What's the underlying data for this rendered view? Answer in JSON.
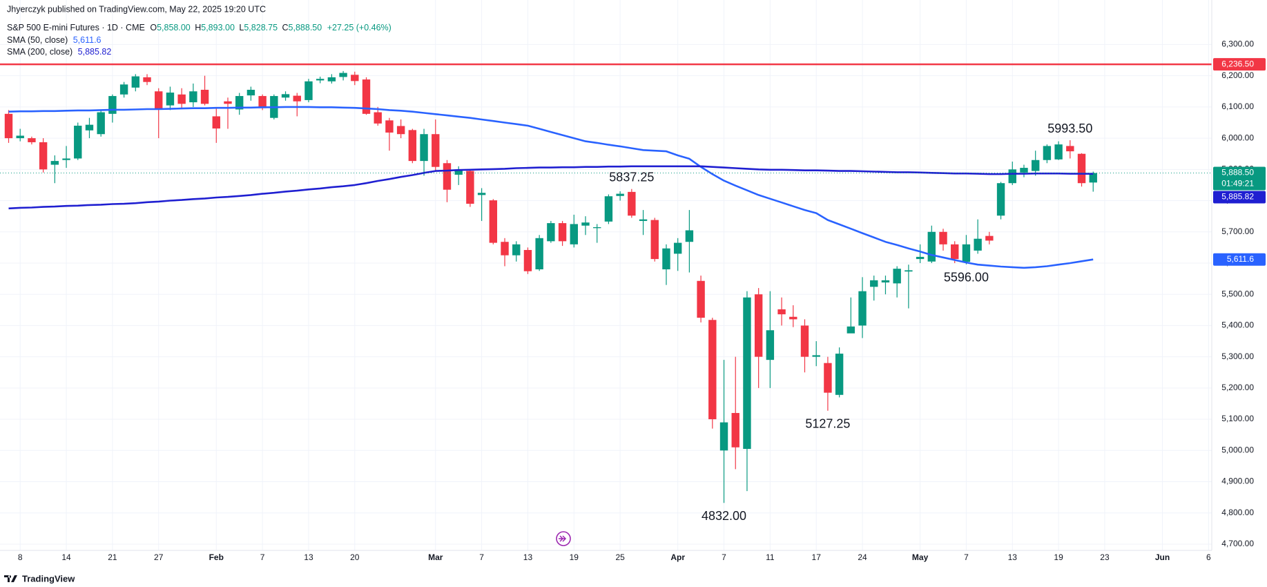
{
  "chart_data": {
    "type": "candlestick",
    "header": {
      "author": "Jhyerczyk published on TradingView.com, May 22, 2025 19:20 UTC",
      "symbol": "S&P 500 E-mini Futures · 1D · CME",
      "ohlc": [
        {
          "key": "O",
          "text": "5,858.00"
        },
        {
          "key": "H",
          "text": "5,893.00"
        },
        {
          "key": "L",
          "text": "5,828.75"
        },
        {
          "key": "C",
          "text": "5,888.50"
        }
      ],
      "change": "+27.25 (+0.46%)"
    },
    "categories": [
      null,
      "8",
      null,
      null,
      null,
      "14",
      null,
      null,
      null,
      "21",
      null,
      null,
      null,
      "27",
      null,
      null,
      null,
      null,
      "Feb",
      null,
      null,
      null,
      "7",
      null,
      null,
      null,
      "13",
      null,
      null,
      null,
      "20",
      null,
      null,
      null,
      null,
      null,
      null,
      "Mar",
      null,
      null,
      null,
      "7",
      null,
      null,
      null,
      "13",
      null,
      null,
      null,
      "19",
      null,
      null,
      null,
      "25",
      null,
      null,
      null,
      null,
      "Apr",
      null,
      null,
      null,
      "7",
      null,
      null,
      null,
      "11",
      null,
      null,
      null,
      "17",
      null,
      null,
      null,
      "24",
      null,
      null,
      null,
      null,
      "May",
      null,
      null,
      null,
      "7",
      null,
      null,
      null,
      "13",
      null,
      null,
      null,
      "19",
      null,
      null,
      null,
      "23",
      null,
      null,
      null,
      null,
      "Jun",
      null,
      null,
      null,
      "6"
    ],
    "month_labels": [
      "Feb",
      "Mar",
      "Apr",
      "May",
      "Jun"
    ],
    "open": [
      6078,
      6000,
      6000,
      5987,
      5915,
      5930,
      5935,
      6025,
      6013,
      6078,
      6140,
      6162,
      6195,
      6150,
      6105,
      6140,
      6115,
      6155,
      6070,
      6118,
      6092,
      6137,
      6135,
      6065,
      6130,
      6136,
      6122,
      6185,
      6182,
      6196,
      6203,
      6188,
      6083,
      6057,
      6039,
      6026,
      5927,
      6013,
      5920,
      5883,
      5895,
      5818,
      5801,
      5668,
      5625,
      5642,
      5580,
      5670,
      5728,
      5660,
      5720,
      5712,
      5733,
      5815,
      5828,
      5735,
      5738,
      5580,
      5630,
      5668,
      5543,
      5418,
      5000,
      5120,
      5005,
      5500,
      5290,
      5452,
      5428,
      5400,
      5300,
      5280,
      5178,
      5375,
      5400,
      5524,
      5538,
      5535,
      5573,
      5613,
      5605,
      5700,
      5660,
      5604,
      5640,
      5687,
      5752,
      5856,
      5890,
      5895,
      5930,
      5932,
      5975,
      5950,
      5858,
      null,
      null,
      null,
      null,
      null,
      null,
      null,
      null,
      null,
      null
    ],
    "high": [
      6090,
      6030,
      6005,
      6000,
      5945,
      5975,
      6050,
      6065,
      6090,
      6140,
      6180,
      6205,
      6205,
      6160,
      6165,
      6160,
      6175,
      6200,
      6095,
      6130,
      6145,
      6165,
      6140,
      6140,
      6150,
      6145,
      6190,
      6197,
      6205,
      6215,
      6213,
      6195,
      6100,
      6065,
      6060,
      6030,
      6030,
      6060,
      5930,
      5910,
      5900,
      5840,
      5805,
      5680,
      5670,
      5650,
      5690,
      5735,
      5735,
      5755,
      5750,
      5725,
      5820,
      5830,
      5837.25,
      5770,
      5745,
      5660,
      5680,
      5770,
      5560,
      5425,
      5290,
      5300,
      5510,
      5520,
      5510,
      5490,
      5465,
      5420,
      5350,
      5300,
      5330,
      5490,
      5555,
      5560,
      5560,
      5590,
      5595,
      5660,
      5720,
      5710,
      5670,
      5690,
      5740,
      5700,
      5860,
      5925,
      5915,
      5960,
      5980,
      5990,
      5993.5,
      5952,
      5893,
      null,
      null,
      null,
      null,
      null,
      null,
      null,
      null,
      null,
      null
    ],
    "low": [
      5985,
      5990,
      5980,
      5890,
      5856,
      5905,
      5930,
      6000,
      6005,
      6050,
      6130,
      6150,
      6170,
      6000,
      6090,
      6095,
      6100,
      6105,
      5985,
      6030,
      6075,
      6120,
      6090,
      6060,
      6120,
      6070,
      6115,
      6176,
      6175,
      6185,
      6170,
      6075,
      6040,
      5960,
      6000,
      5920,
      5880,
      5895,
      5795,
      5850,
      5780,
      5735,
      5660,
      5590,
      5605,
      5565,
      5575,
      5665,
      5655,
      5650,
      5690,
      5665,
      5725,
      5800,
      5745,
      5690,
      5605,
      5530,
      5575,
      5570,
      5410,
      5070,
      4832,
      4940,
      4870,
      5200,
      5200,
      5400,
      5395,
      5250,
      5270,
      5127.25,
      5170,
      5380,
      5360,
      5480,
      5500,
      5490,
      5455,
      5600,
      5600,
      5640,
      5600,
      5596,
      5630,
      5660,
      5740,
      5850,
      5875,
      5880,
      5920,
      5930,
      5935,
      5845,
      5828.75,
      null,
      null,
      null,
      null,
      null,
      null,
      null,
      null,
      null,
      null
    ],
    "close": [
      6000,
      6008,
      5987,
      5900,
      5927,
      5935,
      6040,
      6043,
      6083,
      6135,
      6172,
      6198,
      6180,
      6095,
      6146,
      6110,
      6150,
      6110,
      6031,
      6110,
      6135,
      6155,
      6096,
      6135,
      6141,
      6118,
      6182,
      6190,
      6195,
      6209,
      6183,
      6078,
      6047,
      6018,
      6013,
      5927,
      6013,
      5908,
      5835,
      5900,
      5790,
      5825,
      5665,
      5625,
      5660,
      5574,
      5680,
      5728,
      5670,
      5725,
      5730,
      5715,
      5814,
      5822,
      5752,
      5740,
      5613,
      5647,
      5665,
      5705,
      5425,
      5100,
      5090,
      5010,
      5490,
      5300,
      5385,
      5436,
      5420,
      5300,
      5305,
      5185,
      5310,
      5397,
      5510,
      5545,
      5545,
      5582,
      5577,
      5620,
      5700,
      5660,
      5613,
      5660,
      5678,
      5672,
      5856,
      5900,
      5905,
      5930,
      5975,
      5980,
      5958,
      5856,
      5888.5,
      null,
      null,
      null,
      null,
      null,
      null,
      null,
      null,
      null,
      null
    ],
    "colors": {
      "up": "#089981",
      "down": "#f23645"
    },
    "series": [
      {
        "name": "SMA (50, close)",
        "color": "#2962ff",
        "last_label": "5,611.6",
        "values": [
          6085,
          6086,
          6086,
          6087,
          6087,
          6088,
          6089,
          6089,
          6090,
          6091,
          6091,
          6092,
          6093,
          6093,
          6094,
          6095,
          6096,
          6096,
          6097,
          6097,
          6098,
          6098,
          6099,
          6099,
          6100,
          6100,
          6100,
          6099,
          6099,
          6098,
          6097,
          6095,
          6093,
          6090,
          6088,
          6085,
          6081,
          6077,
          6073,
          6069,
          6065,
          6060,
          6055,
          6050,
          6045,
          6040,
          6030,
          6020,
          6010,
          6000,
          5990,
          5985,
          5979,
          5974,
          5968,
          5962,
          5960,
          5958,
          5945,
          5934,
          5908,
          5885,
          5864,
          5848,
          5833,
          5818,
          5806,
          5794,
          5782,
          5770,
          5760,
          5738,
          5724,
          5710,
          5696,
          5682,
          5668,
          5658,
          5647,
          5637,
          5626,
          5618,
          5610,
          5602,
          5595,
          5592,
          5589,
          5587,
          5585,
          5587,
          5590,
          5595,
          5600,
          5606,
          5611.6,
          null,
          null,
          null,
          null,
          null,
          null,
          null,
          null,
          null,
          null
        ]
      },
      {
        "name": "SMA (200, close)",
        "color": "#1f1fd1",
        "last_label": "5,885.82",
        "values": [
          5775,
          5777,
          5778,
          5780,
          5781,
          5783,
          5784,
          5786,
          5787,
          5789,
          5790,
          5792,
          5795,
          5797,
          5800,
          5802,
          5805,
          5807,
          5810,
          5812,
          5815,
          5818,
          5822,
          5825,
          5829,
          5832,
          5836,
          5839,
          5843,
          5846,
          5850,
          5856,
          5863,
          5869,
          5876,
          5882,
          5889,
          5895,
          5896,
          5898,
          5899,
          5900,
          5901,
          5902,
          5904,
          5905,
          5906,
          5906,
          5907,
          5907,
          5908,
          5908,
          5909,
          5909,
          5910,
          5910,
          5910,
          5910,
          5910,
          5910,
          5910,
          5908,
          5906,
          5904,
          5902,
          5900,
          5899,
          5899,
          5898,
          5897,
          5897,
          5896,
          5895,
          5895,
          5894,
          5893,
          5892,
          5891,
          5891,
          5890,
          5889,
          5888,
          5887,
          5887,
          5886,
          5885,
          5885,
          5886,
          5886,
          5887,
          5887,
          5887,
          5886,
          5886,
          5885.82,
          null,
          null,
          null,
          null,
          null,
          null,
          null,
          null,
          null,
          null
        ]
      }
    ],
    "hline": {
      "value": 6236.5,
      "label": "6,236.50",
      "color": "#f23645"
    },
    "last_price": {
      "value": 5888.5,
      "label": "5,888.50",
      "countdown": "01:49:21"
    },
    "annotations": [
      {
        "value": 5993.5,
        "label": "5993.50"
      },
      {
        "value": 5837.25,
        "label": "5837.25"
      },
      {
        "value": 4832,
        "label": "4832.00"
      },
      {
        "value": 5127.25,
        "label": "5127.25"
      },
      {
        "value": 5596,
        "label": "5596.00"
      }
    ],
    "ylim": [
      4680,
      6385
    ],
    "yticks": [
      {
        "value": 4700,
        "label": "4,700.00"
      },
      {
        "value": 4800,
        "label": "4,800.00"
      },
      {
        "value": 4900,
        "label": "4,900.00"
      },
      {
        "value": 5000,
        "label": "5,000.00"
      },
      {
        "value": 5100,
        "label": "5,100.00"
      },
      {
        "value": 5200,
        "label": "5,200.00"
      },
      {
        "value": 5300,
        "label": "5,300.00"
      },
      {
        "value": 5400,
        "label": "5,400.00"
      },
      {
        "value": 5500,
        "label": "5,500.00"
      },
      {
        "value": 5600,
        "label": "5,600.00"
      },
      {
        "value": 5700,
        "label": "5,700.00"
      },
      {
        "value": 5800,
        "label": "5,800.00"
      },
      {
        "value": 5900,
        "label": "5,900.00"
      },
      {
        "value": 6000,
        "label": "6,000.00"
      },
      {
        "value": 6100,
        "label": "6,100.00"
      },
      {
        "value": 6200,
        "label": "6,200.00"
      },
      {
        "value": 6300,
        "label": "6,300.00"
      }
    ],
    "grid": true
  },
  "footer": {
    "brand": "TradingView"
  }
}
